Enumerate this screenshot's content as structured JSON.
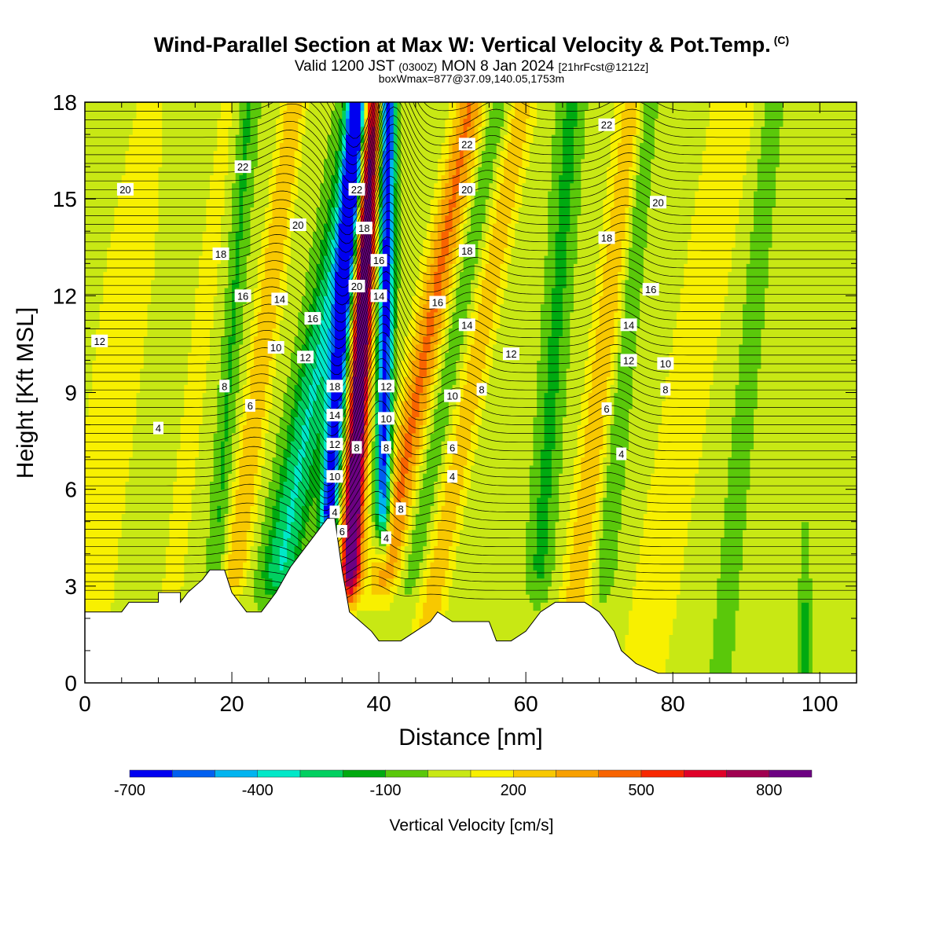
{
  "header": {
    "title": "Wind-Parallel Section at Max W: Vertical Velocity & Pot.Temp.",
    "copyright": "(C)",
    "valid_prefix": "Valid 1200 JST",
    "valid_utc": "(0300Z)",
    "valid_date": "MON 8 Jan 2024",
    "forecast": "[21hrFcst@1212z]",
    "box_info": "boxWmax=877@37.09,140.05,1753m"
  },
  "chart_data": {
    "type": "heatmap",
    "xlabel": "Distance [nm]",
    "ylabel": "Height [Kft MSL]",
    "xlim": [
      0,
      105
    ],
    "ylim": [
      0,
      18
    ],
    "x_ticks": [
      0,
      20,
      40,
      60,
      80,
      100
    ],
    "y_ticks": [
      0,
      3,
      6,
      9,
      12,
      15,
      18
    ],
    "colorbar": {
      "label": "Vertical Velocity [cm/s]",
      "tick_labels": [
        "-700",
        "-400",
        "-100",
        "200",
        "500",
        "800"
      ],
      "tick_values": [
        -700,
        -400,
        -100,
        200,
        500,
        800
      ],
      "bins": [
        -700,
        -600,
        -500,
        -400,
        -300,
        -200,
        -100,
        0,
        100,
        200,
        300,
        400,
        500,
        600,
        700,
        800,
        900
      ],
      "colors": [
        "#0000f0",
        "#0060f0",
        "#00b4f0",
        "#00e8c8",
        "#00d060",
        "#00aa10",
        "#5ac80a",
        "#c8e814",
        "#f8f000",
        "#f8c800",
        "#f8a000",
        "#f86400",
        "#f82800",
        "#e00028",
        "#a00050",
        "#6c0082"
      ]
    },
    "terrain": [
      [
        0,
        2.2
      ],
      [
        5,
        2.2
      ],
      [
        6,
        2.5
      ],
      [
        10,
        2.5
      ],
      [
        10,
        2.8
      ],
      [
        13,
        2.8
      ],
      [
        13,
        2.5
      ],
      [
        14,
        2.8
      ],
      [
        16,
        3.2
      ],
      [
        17,
        3.5
      ],
      [
        19,
        3.5
      ],
      [
        20,
        2.8
      ],
      [
        21,
        2.5
      ],
      [
        22,
        2.2
      ],
      [
        24,
        2.2
      ],
      [
        25,
        2.5
      ],
      [
        26,
        2.8
      ],
      [
        27,
        3.2
      ],
      [
        28,
        3.6
      ],
      [
        29,
        3.9
      ],
      [
        30,
        4.2
      ],
      [
        31,
        4.5
      ],
      [
        32,
        4.8
      ],
      [
        33,
        5.1
      ],
      [
        34,
        5.1
      ],
      [
        35,
        3.5
      ],
      [
        36,
        2.2
      ],
      [
        37,
        2.0
      ],
      [
        39,
        1.6
      ],
      [
        40,
        1.3
      ],
      [
        43,
        1.3
      ],
      [
        45,
        1.6
      ],
      [
        47,
        1.9
      ],
      [
        48,
        2.2
      ],
      [
        50,
        1.9
      ],
      [
        52,
        1.9
      ],
      [
        55,
        1.9
      ],
      [
        56,
        1.3
      ],
      [
        58,
        1.3
      ],
      [
        60,
        1.6
      ],
      [
        62,
        2.2
      ],
      [
        64,
        2.5
      ],
      [
        68,
        2.5
      ],
      [
        70,
        2.2
      ],
      [
        72,
        1.6
      ],
      [
        73,
        1.0
      ],
      [
        75,
        0.6
      ],
      [
        78,
        0.3
      ],
      [
        105,
        0.3
      ]
    ],
    "theta_labels": [
      {
        "text": "22",
        "x": 21.5,
        "y": 16.0
      },
      {
        "text": "20",
        "x": 5.5,
        "y": 15.3
      },
      {
        "text": "18",
        "x": 18.5,
        "y": 13.3
      },
      {
        "text": "16",
        "x": 21.5,
        "y": 12.0
      },
      {
        "text": "14",
        "x": 26.5,
        "y": 11.9
      },
      {
        "text": "12",
        "x": 2.0,
        "y": 10.6
      },
      {
        "text": "10",
        "x": 26.0,
        "y": 10.4
      },
      {
        "text": "8",
        "x": 19.0,
        "y": 9.2
      },
      {
        "text": "6",
        "x": 22.5,
        "y": 8.6
      },
      {
        "text": "4",
        "x": 10.0,
        "y": 7.9
      },
      {
        "text": "20",
        "x": 29.0,
        "y": 14.2
      },
      {
        "text": "16",
        "x": 31.0,
        "y": 11.3
      },
      {
        "text": "12",
        "x": 30.0,
        "y": 10.1
      },
      {
        "text": "22",
        "x": 37.0,
        "y": 15.3
      },
      {
        "text": "20",
        "x": 37.0,
        "y": 12.3
      },
      {
        "text": "18",
        "x": 38.0,
        "y": 14.1
      },
      {
        "text": "16",
        "x": 40.0,
        "y": 13.1
      },
      {
        "text": "14",
        "x": 40.0,
        "y": 12.0
      },
      {
        "text": "18",
        "x": 34.0,
        "y": 9.2
      },
      {
        "text": "14",
        "x": 34.0,
        "y": 8.3
      },
      {
        "text": "12",
        "x": 34.0,
        "y": 7.4
      },
      {
        "text": "10",
        "x": 34.0,
        "y": 6.4
      },
      {
        "text": "4",
        "x": 34.0,
        "y": 5.3
      },
      {
        "text": "6",
        "x": 35.0,
        "y": 4.7
      },
      {
        "text": "8",
        "x": 37.0,
        "y": 7.3
      },
      {
        "text": "12",
        "x": 41.0,
        "y": 9.2
      },
      {
        "text": "10",
        "x": 41.0,
        "y": 8.2
      },
      {
        "text": "8",
        "x": 41.0,
        "y": 7.3
      },
      {
        "text": "8",
        "x": 43.0,
        "y": 5.4
      },
      {
        "text": "4",
        "x": 41.0,
        "y": 4.5
      },
      {
        "text": "22",
        "x": 52.0,
        "y": 16.7
      },
      {
        "text": "20",
        "x": 52.0,
        "y": 15.3
      },
      {
        "text": "18",
        "x": 52.0,
        "y": 13.4
      },
      {
        "text": "16",
        "x": 48.0,
        "y": 11.8
      },
      {
        "text": "14",
        "x": 52.0,
        "y": 11.1
      },
      {
        "text": "12",
        "x": 58.0,
        "y": 10.2
      },
      {
        "text": "10",
        "x": 50.0,
        "y": 8.9
      },
      {
        "text": "8",
        "x": 54.0,
        "y": 9.1
      },
      {
        "text": "6",
        "x": 50.0,
        "y": 7.3
      },
      {
        "text": "4",
        "x": 50.0,
        "y": 6.4
      },
      {
        "text": "22",
        "x": 71.0,
        "y": 17.3
      },
      {
        "text": "20",
        "x": 78.0,
        "y": 14.9
      },
      {
        "text": "18",
        "x": 71.0,
        "y": 13.8
      },
      {
        "text": "16",
        "x": 77.0,
        "y": 12.2
      },
      {
        "text": "14",
        "x": 74.0,
        "y": 11.1
      },
      {
        "text": "12",
        "x": 74.0,
        "y": 10.0
      },
      {
        "text": "10",
        "x": 79.0,
        "y": 9.9
      },
      {
        "text": "8",
        "x": 79.0,
        "y": 9.1
      },
      {
        "text": "6",
        "x": 71.0,
        "y": 8.5
      },
      {
        "text": "4",
        "x": 73.0,
        "y": 7.1
      }
    ]
  }
}
